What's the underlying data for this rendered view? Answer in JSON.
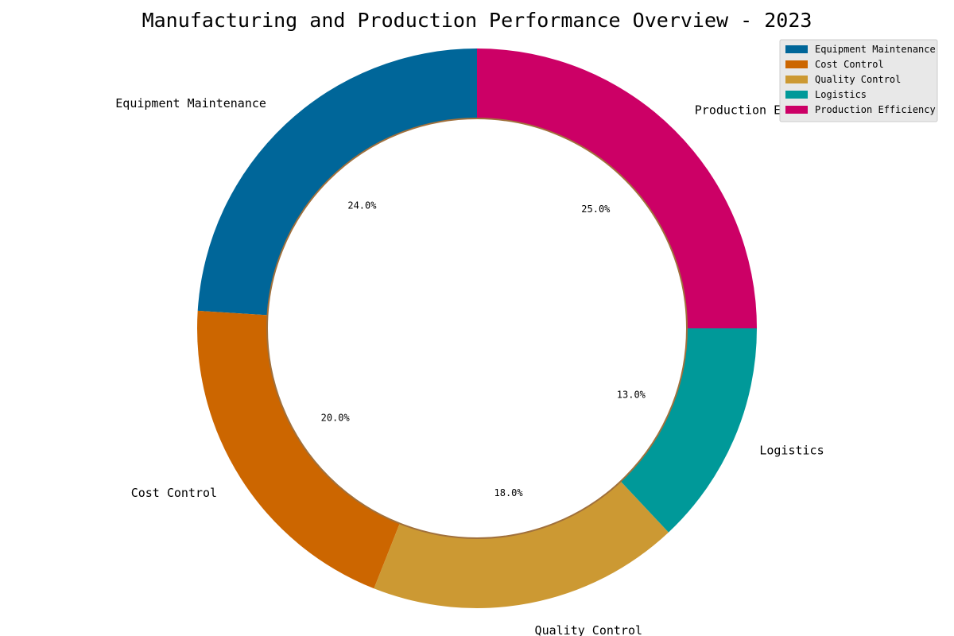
{
  "chart_data": {
    "type": "pie",
    "title": "Manufacturing and Production Performance Overview - 2023",
    "donut": true,
    "start_angle_deg": 90,
    "direction": "counterclockwise",
    "categories": [
      "Equipment Maintenance",
      "Cost Control",
      "Quality Control",
      "Logistics",
      "Production Efficiency"
    ],
    "values": [
      24,
      20,
      18,
      13,
      25
    ],
    "percent_labels": [
      "24.0%",
      "20.0%",
      "18.0%",
      "13.0%",
      "25.0%"
    ],
    "colors": [
      "#006699",
      "#cc6600",
      "#cc9933",
      "#009999",
      "#cc0066"
    ],
    "inner_ring_color": "#a0703c",
    "legend": {
      "position": "top-right",
      "background": "#e8e8e8",
      "entries": [
        "Equipment Maintenance",
        "Cost Control",
        "Quality Control",
        "Logistics",
        "Production Efficiency"
      ]
    }
  }
}
